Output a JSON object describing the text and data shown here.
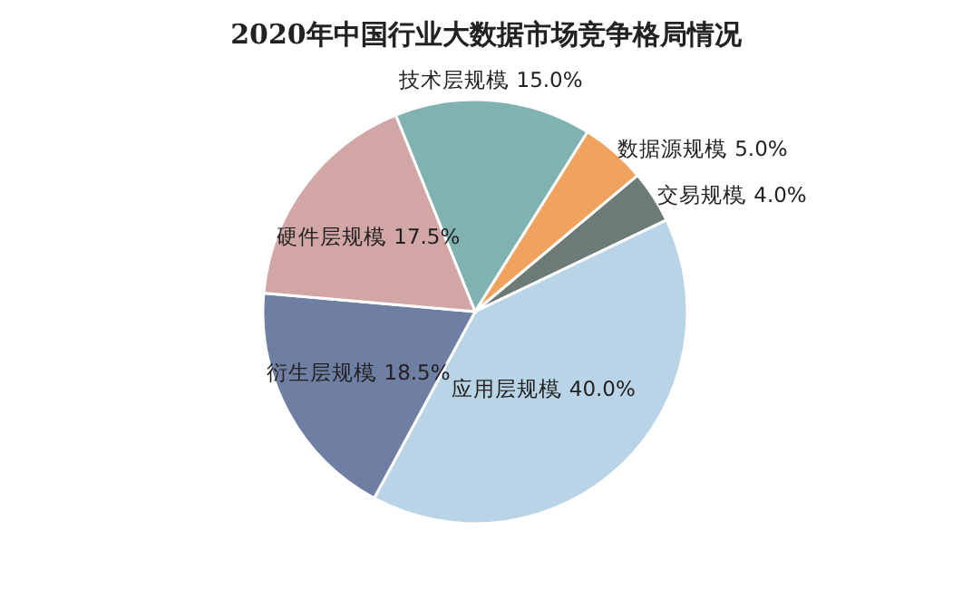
{
  "chart_data": {
    "type": "pie",
    "title": "2020年中国行业大数据市场竞争格局情况",
    "categories": [
      "技术层规模",
      "数据源规模",
      "交易规模",
      "应用层规模",
      "衍生层规模",
      "硬件层规模"
    ],
    "values": [
      15.0,
      5.0,
      4.0,
      40.0,
      18.5,
      17.5
    ],
    "colors": [
      "#7fb2b0",
      "#f0a35e",
      "#6d7b78",
      "#b9d4e6",
      "#6f7ea3",
      "#d3a6a6"
    ],
    "value_labels": [
      ", 15.0%",
      ", 5.0%",
      ", 4.0%",
      ", 40.0%",
      ", 18.5%",
      ", 17.5%"
    ]
  }
}
